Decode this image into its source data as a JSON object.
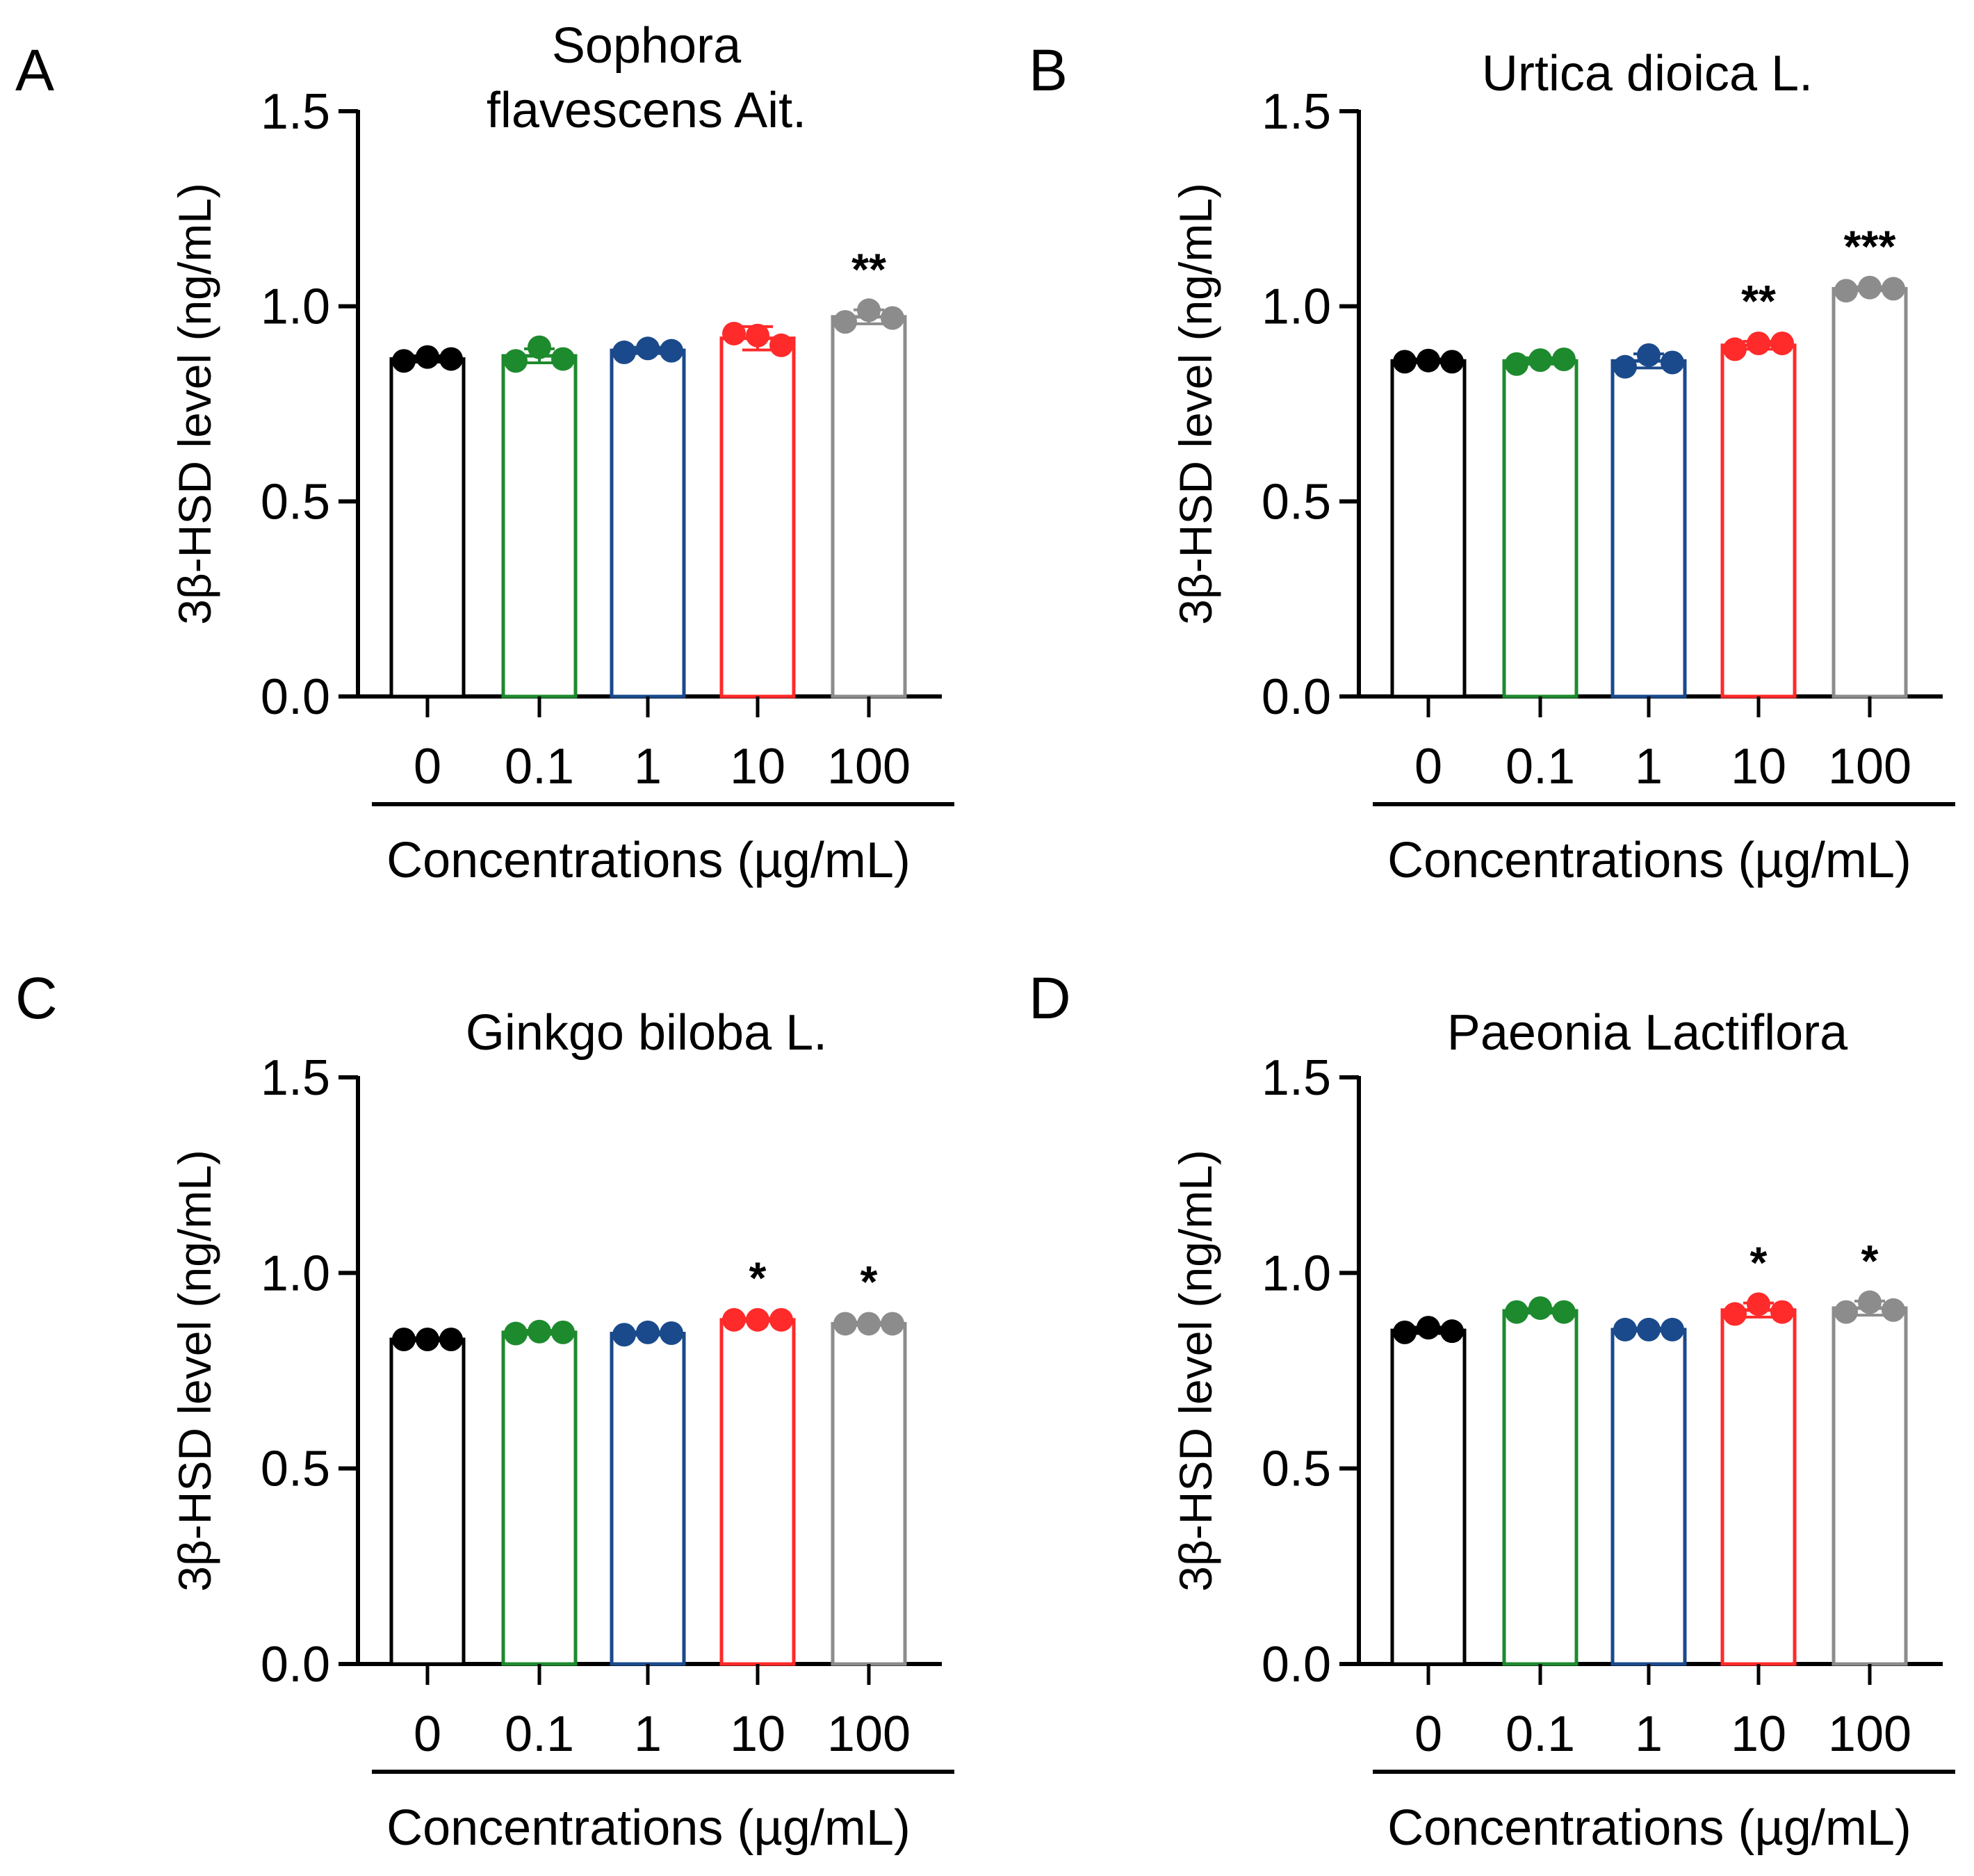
{
  "figure": {
    "y_axis_label": "3β-HSD level (ng/mL)",
    "x_axis_label": "Concentrations (µg/mL)",
    "categories": [
      "0",
      "0.1",
      "1",
      "10",
      "100"
    ],
    "yticks": [
      "0.0",
      "0.5",
      "1.0",
      "1.5"
    ],
    "colors": [
      "#000000",
      "#1e8a2e",
      "#1a4a8c",
      "#ff2a2a",
      "#8c8c8c"
    ]
  },
  "chart_data": [
    {
      "type": "bar",
      "panel": "A",
      "title": "Sophora flavescens Ait.",
      "title_lines": [
        "Sophora",
        "flavescens Ait."
      ],
      "categories": [
        "0",
        "0.1",
        "1",
        "10",
        "100"
      ],
      "values": [
        0.865,
        0.873,
        0.887,
        0.918,
        0.973
      ],
      "points": [
        [
          0.86,
          0.87,
          0.865
        ],
        [
          0.86,
          0.895,
          0.865
        ],
        [
          0.882,
          0.892,
          0.886
        ],
        [
          0.93,
          0.925,
          0.9
        ],
        [
          0.96,
          0.99,
          0.97
        ]
      ],
      "errors": [
        0.008,
        0.018,
        0.008,
        0.03,
        0.018
      ],
      "significance": [
        "",
        "",
        "",
        "",
        "**"
      ],
      "xlabel": "Concentrations (µg/mL)",
      "ylabel": "3β-HSD level (ng/mL)",
      "ylim": [
        0,
        1.5
      ],
      "yticks": [
        0,
        0.5,
        1.0,
        1.5
      ]
    },
    {
      "type": "bar",
      "panel": "B",
      "title": "Urtica dioica L.",
      "title_lines": [
        "Urtica dioica L."
      ],
      "categories": [
        "0",
        "0.1",
        "1",
        "10",
        "100"
      ],
      "values": [
        0.86,
        0.86,
        0.86,
        0.9,
        1.045
      ],
      "points": [
        [
          0.858,
          0.861,
          0.858
        ],
        [
          0.852,
          0.862,
          0.864
        ],
        [
          0.845,
          0.875,
          0.856
        ],
        [
          0.89,
          0.905,
          0.905
        ],
        [
          1.04,
          1.048,
          1.045
        ]
      ],
      "errors": [
        0.005,
        0.008,
        0.018,
        0.01,
        0.005
      ],
      "significance": [
        "",
        "",
        "",
        "**",
        "***"
      ],
      "xlabel": "Concentrations (µg/mL)",
      "ylabel": "3β-HSD level (ng/mL)",
      "ylim": [
        0,
        1.5
      ],
      "yticks": [
        0,
        0.5,
        1.0,
        1.5
      ]
    },
    {
      "type": "bar",
      "panel": "C",
      "title": "Ginkgo biloba L.",
      "title_lines": [
        "Ginkgo biloba L."
      ],
      "categories": [
        "0",
        "0.1",
        "1",
        "10",
        "100"
      ],
      "values": [
        0.83,
        0.848,
        0.845,
        0.88,
        0.87
      ],
      "points": [
        [
          0.83,
          0.83,
          0.83
        ],
        [
          0.845,
          0.85,
          0.848
        ],
        [
          0.842,
          0.848,
          0.846
        ],
        [
          0.88,
          0.88,
          0.88
        ],
        [
          0.87,
          0.87,
          0.87
        ]
      ],
      "errors": [
        0.004,
        0.005,
        0.004,
        0.004,
        0.004
      ],
      "significance": [
        "",
        "",
        "",
        "*",
        "*"
      ],
      "xlabel": "Concentrations (µg/mL)",
      "ylabel": "3β-HSD level (ng/mL)",
      "ylim": [
        0,
        1.5
      ],
      "yticks": [
        0,
        0.5,
        1.0,
        1.5
      ]
    },
    {
      "type": "bar",
      "panel": "D",
      "title": "Paeonia Lactiflora",
      "title_lines": [
        "Paeonia Lactiflora"
      ],
      "categories": [
        "0",
        "0.1",
        "1",
        "10",
        "100"
      ],
      "values": [
        0.853,
        0.903,
        0.855,
        0.905,
        0.91
      ],
      "points": [
        [
          0.848,
          0.86,
          0.851
        ],
        [
          0.9,
          0.91,
          0.9
        ],
        [
          0.855,
          0.855,
          0.855
        ],
        [
          0.895,
          0.92,
          0.9
        ],
        [
          0.9,
          0.925,
          0.905
        ]
      ],
      "errors": [
        0.008,
        0.006,
        0.004,
        0.018,
        0.018
      ],
      "significance": [
        "",
        "",
        "",
        "*",
        "*"
      ],
      "xlabel": "Concentrations (µg/mL)",
      "ylabel": "3β-HSD level (ng/mL)",
      "ylim": [
        0,
        1.5
      ],
      "yticks": [
        0,
        0.5,
        1.0,
        1.5
      ]
    }
  ]
}
